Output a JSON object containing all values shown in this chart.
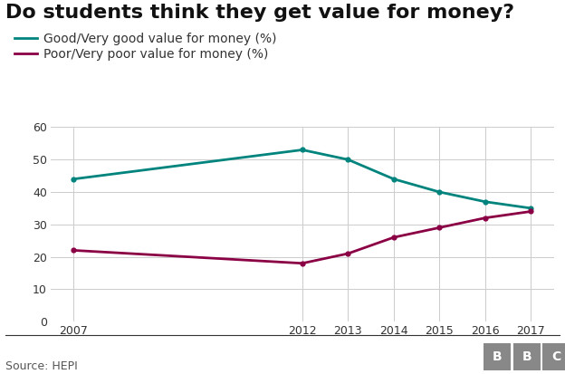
{
  "title": "Do students think they get value for money?",
  "years": [
    2007,
    2012,
    2013,
    2014,
    2015,
    2016,
    2017
  ],
  "good_values": [
    44,
    53,
    50,
    44,
    40,
    37,
    35
  ],
  "poor_values": [
    22,
    18,
    21,
    26,
    29,
    32,
    34
  ],
  "good_color": "#00847d",
  "poor_color": "#8b0045",
  "good_label": "Good/Very good value for money (%)",
  "poor_label": "Poor/Very poor value for money (%)",
  "ylim": [
    0,
    60
  ],
  "yticks": [
    0,
    10,
    20,
    30,
    40,
    50,
    60
  ],
  "source": "Source: HEPI",
  "background_color": "#ffffff",
  "grid_color": "#cccccc",
  "title_fontsize": 16,
  "legend_fontsize": 10,
  "tick_fontsize": 9,
  "source_fontsize": 9,
  "bbc_bg": "#888888"
}
